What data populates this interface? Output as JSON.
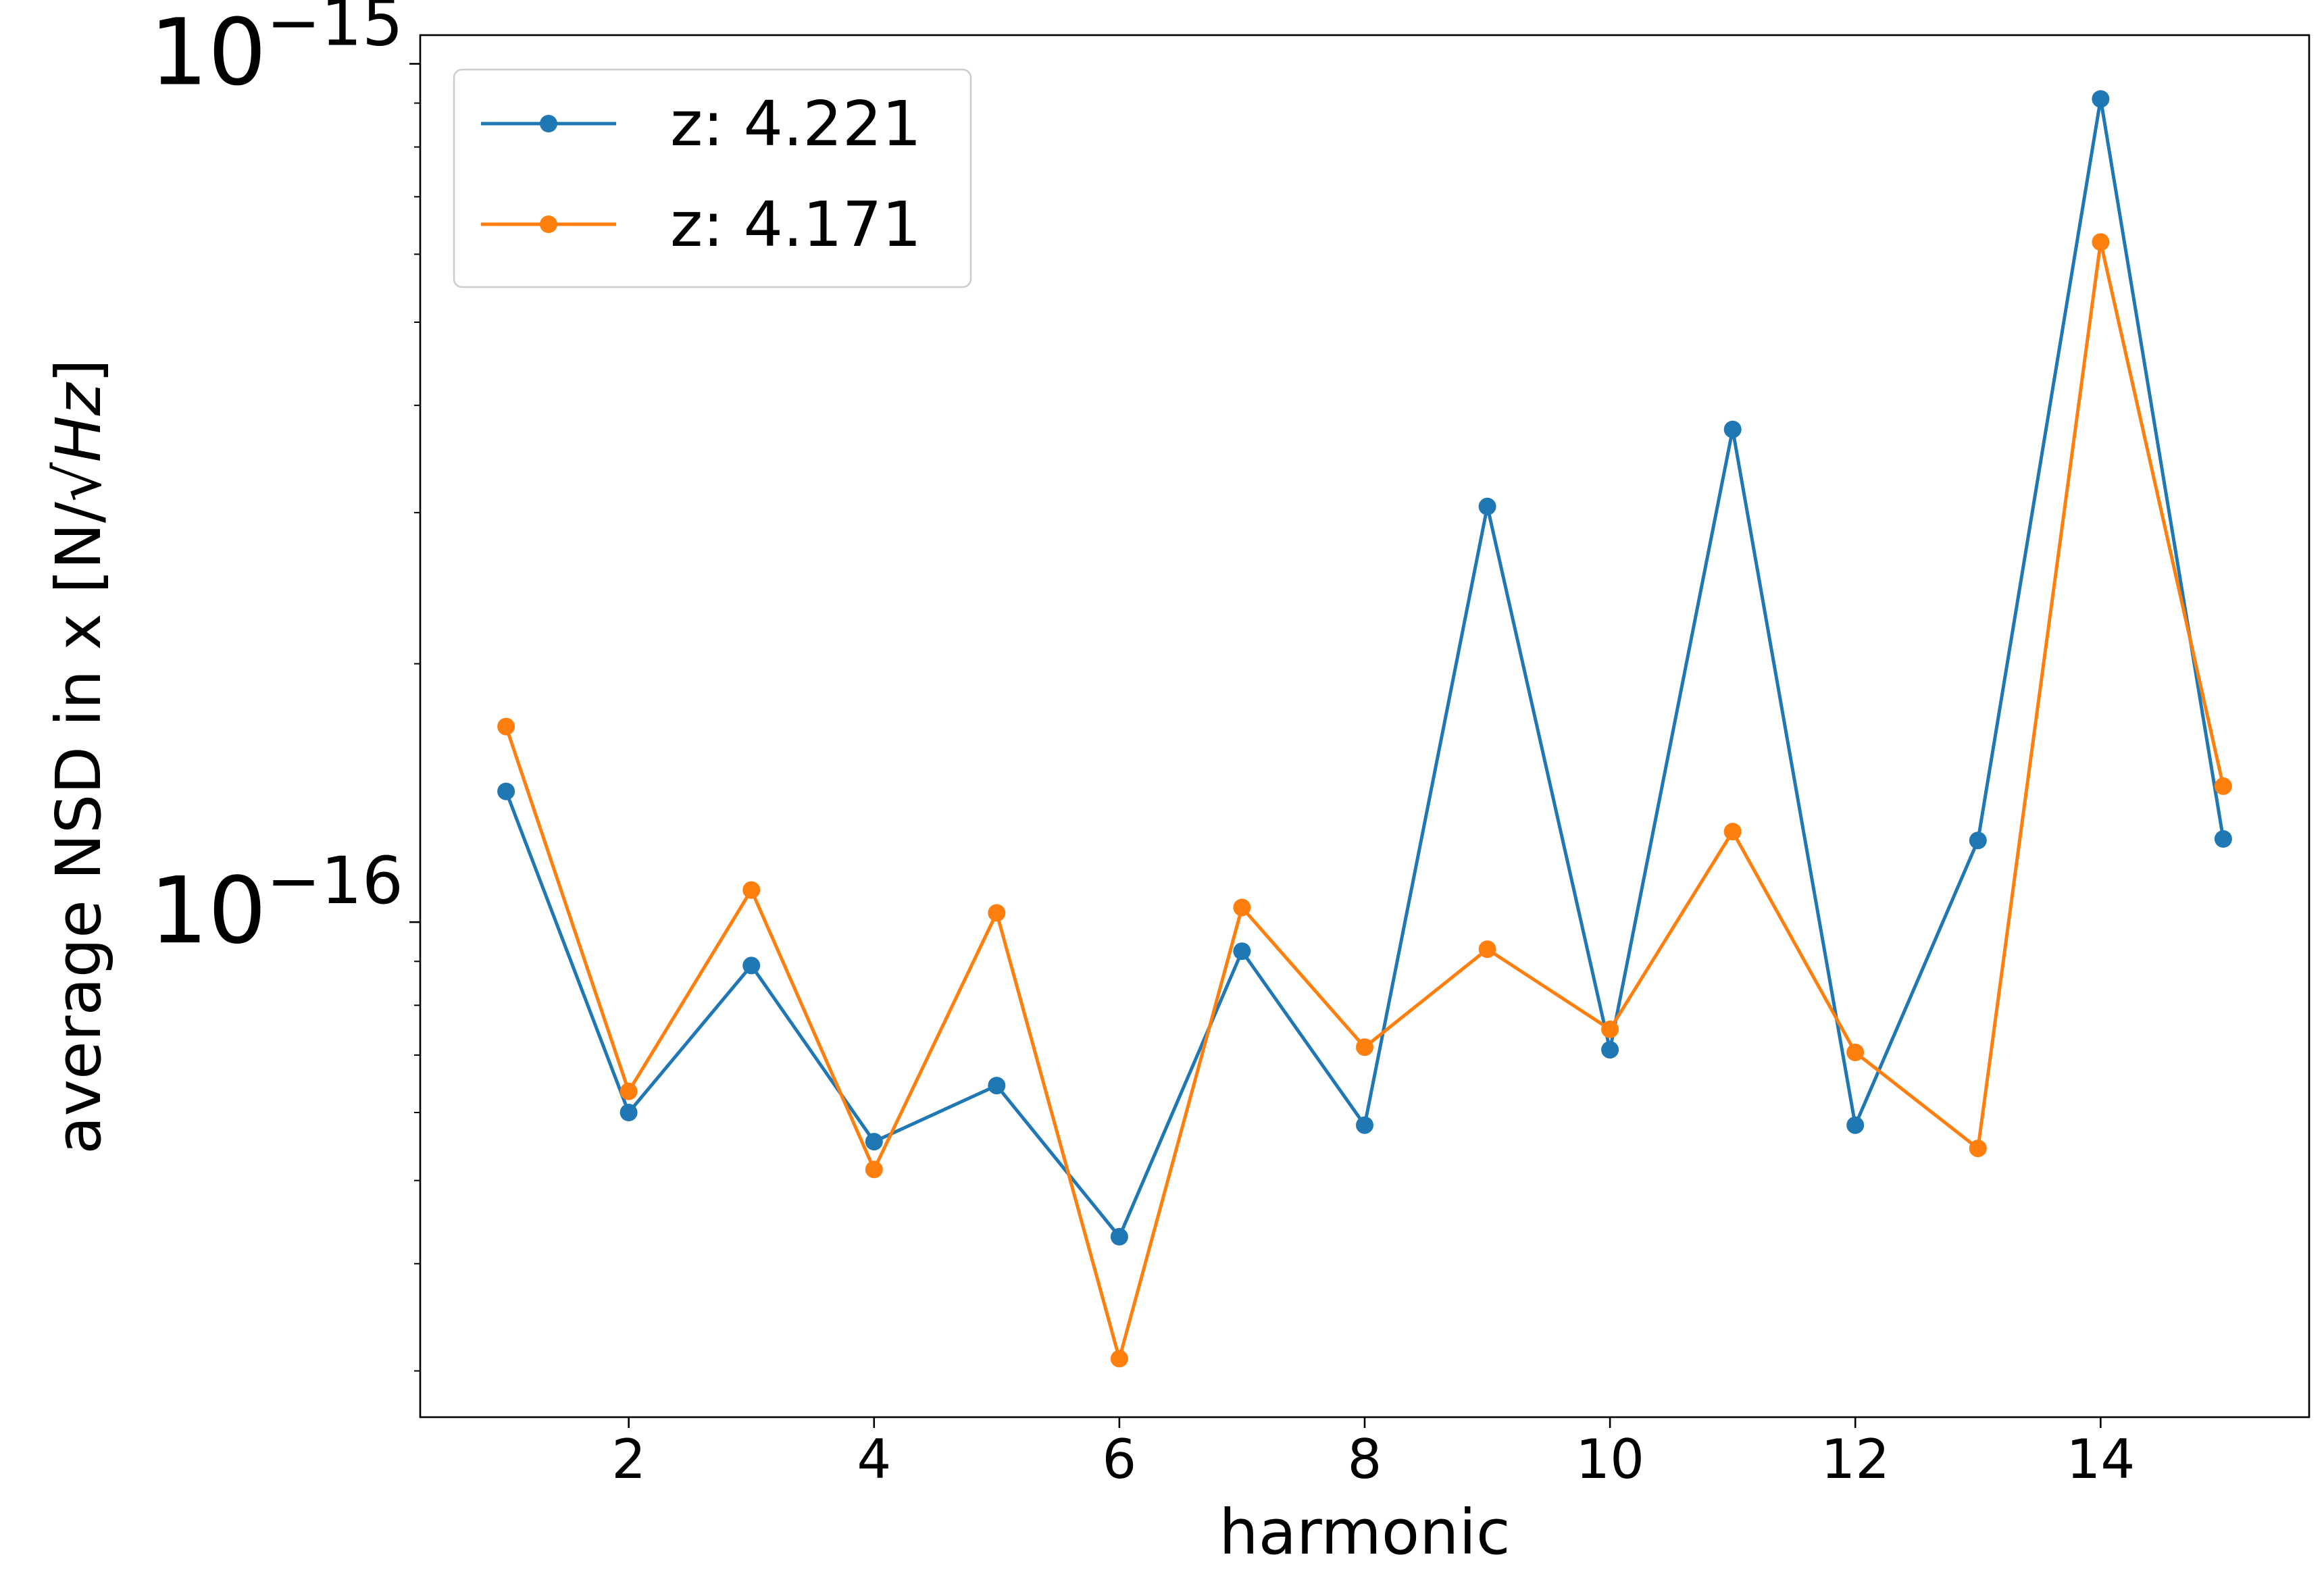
{
  "chart_data": {
    "type": "line",
    "title": "",
    "xlabel": "harmonic",
    "ylabel_main": "average NSD in x [N/",
    "ylabel_sqrt": "Hz",
    "ylabel_close": "]",
    "yscale": "log",
    "xlim": [
      0.3,
      15.7
    ],
    "ylim": [
      2.65e-17,
      1.08e-15
    ],
    "x_ticks": [
      2,
      4,
      6,
      8,
      10,
      12,
      14
    ],
    "x_tick_labels": [
      "2",
      "4",
      "6",
      "8",
      "10",
      "12",
      "14"
    ],
    "y_major_ticks": [
      {
        "value": 1e-15,
        "base": "10",
        "exp": "−15"
      },
      {
        "value": 1e-16,
        "base": "10",
        "exp": "−16"
      }
    ],
    "y_minor_ticks": [
      3e-17,
      4e-17,
      5e-17,
      6e-17,
      7e-17,
      8e-17,
      9e-17,
      2e-16,
      3e-16,
      4e-16,
      5e-16,
      6e-16,
      7e-16,
      8e-16,
      9e-16
    ],
    "grid": false,
    "legend_position": "top-left",
    "x": [
      1,
      2,
      3,
      4,
      5,
      6,
      7,
      8,
      9,
      10,
      11,
      12,
      13,
      14,
      15
    ],
    "series": [
      {
        "name": "z: 4.221",
        "color": "#1f77b4",
        "values": [
          1.42e-16,
          6e-17,
          8.9e-17,
          5.55e-17,
          6.45e-17,
          4.3e-17,
          9.25e-17,
          5.8e-17,
          3.05e-16,
          7.1e-17,
          3.75e-16,
          5.8e-17,
          1.245e-16,
          9.1e-16,
          1.25e-16
        ]
      },
      {
        "name": "z: 4.171",
        "color": "#ff7f0e",
        "values": [
          1.69e-16,
          6.35e-17,
          1.09e-16,
          5.15e-17,
          1.025e-16,
          3.1e-17,
          1.04e-16,
          7.15e-17,
          9.3e-17,
          7.5e-17,
          1.275e-16,
          7.05e-17,
          5.45e-17,
          6.2e-16,
          1.44e-16
        ]
      }
    ]
  }
}
